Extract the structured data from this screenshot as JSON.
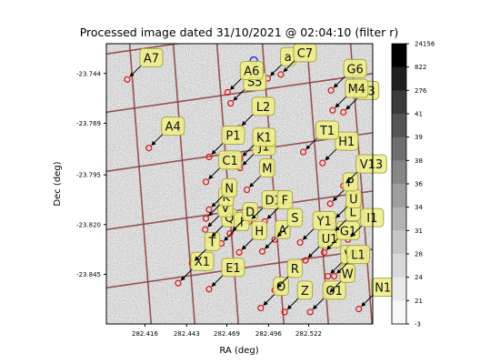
{
  "chart_data": {
    "type": "scatter",
    "title": "Processed image dated 31/10/2021 @ 02:04:10 (filter r)",
    "xlabel": "RA (deg)",
    "ylabel": "Dec (deg)",
    "x_ticks": [
      "282.416",
      "282.443",
      "282.469",
      "282.496",
      "282.522"
    ],
    "y_ticks": [
      "-23.744",
      "-23.769",
      "-23.795",
      "-23.820",
      "-23.845"
    ],
    "colorbar_ticks": [
      "24156",
      "822",
      "276",
      "41",
      "39",
      "38",
      "36",
      "34",
      "31",
      "28",
      "24",
      "21",
      "-3"
    ],
    "colormap": [
      "#000000",
      "#1f1f1f",
      "#3a3a3a",
      "#555555",
      "#6e6e6e",
      "#878787",
      "#9e9e9e",
      "#b3b3b3",
      "#c7c7c7",
      "#d9d9d9",
      "#e9e9e9",
      "#f7f7f7"
    ],
    "target_marker": {
      "ra": 282.4865,
      "dec": -23.7375,
      "color": "#1f1fdd"
    },
    "stars": [
      {
        "label": "O",
        "ra": 282.491,
        "dec": -23.862
      },
      {
        "label": "Z",
        "ra": 282.5065,
        "dec": -23.864
      },
      {
        "label": "O1",
        "ra": 282.523,
        "dec": -23.864
      },
      {
        "label": "N1",
        "ra": 282.5545,
        "dec": -23.8625
      },
      {
        "label": "W",
        "ra": 282.534,
        "dec": -23.8555
      },
      {
        "label": "E1",
        "ra": 282.4575,
        "dec": -23.8525
      },
      {
        "label": "X1",
        "ra": 282.4375,
        "dec": -23.8495
      },
      {
        "label": "R",
        "ra": 282.5,
        "dec": -23.853
      },
      {
        "label": "V1",
        "ra": 282.5345,
        "dec": -23.846
      },
      {
        "label": "L1",
        "ra": 282.5385,
        "dec": -23.846
      },
      {
        "label": "T",
        "ra": 282.4465,
        "dec": -23.8395
      },
      {
        "label": "H",
        "ra": 282.477,
        "dec": -23.834
      },
      {
        "label": "A",
        "ra": 282.492,
        "dec": -23.8335
      },
      {
        "label": "U1",
        "ra": 282.52,
        "dec": -23.838
      },
      {
        "label": "G1",
        "ra": 282.532,
        "dec": -23.834
      },
      {
        "label": "Y1",
        "ra": 282.5165,
        "dec": -23.829
      },
      {
        "label": "S",
        "ra": 282.5,
        "dec": -23.8275
      },
      {
        "label": "I1",
        "ra": 282.5475,
        "dec": -23.8275
      },
      {
        "label": "Q",
        "ra": 282.4575,
        "dec": -23.8275
      },
      {
        "label": "I",
        "ra": 282.4655,
        "dec": -23.8295
      },
      {
        "label": "D",
        "ra": 282.471,
        "dec": -23.8245
      },
      {
        "label": "V",
        "ra": 282.455,
        "dec": -23.8225
      },
      {
        "label": "L",
        "ra": 282.5375,
        "dec": -23.8245
      },
      {
        "label": "U",
        "ra": 282.538,
        "dec": -23.818
      },
      {
        "label": "D1",
        "ra": 282.4835,
        "dec": -23.8185
      },
      {
        "label": "F",
        "ra": 282.4935,
        "dec": -23.8185
      },
      {
        "label": "K",
        "ra": 282.4555,
        "dec": -23.817
      },
      {
        "label": "N",
        "ra": 282.4575,
        "dec": -23.8125
      },
      {
        "label": "P",
        "ra": 282.536,
        "dec": -23.8095
      },
      {
        "label": "M",
        "ra": 282.482,
        "dec": -23.8025
      },
      {
        "label": "V13",
        "ra": 282.5445,
        "dec": -23.8005
      },
      {
        "label": "C1",
        "ra": 282.4555,
        "dec": -23.7985
      },
      {
        "label": "J1",
        "ra": 282.4775,
        "dec": -23.7915
      },
      {
        "label": "H1",
        "ra": 282.531,
        "dec": -23.789
      },
      {
        "label": "P1",
        "ra": 282.4575,
        "dec": -23.786
      },
      {
        "label": "K1",
        "ra": 282.4775,
        "dec": -23.787
      },
      {
        "label": "A4",
        "ra": 282.4185,
        "dec": -23.7815
      },
      {
        "label": "T1",
        "ra": 282.5185,
        "dec": -23.7835
      },
      {
        "label": "L2",
        "ra": 282.477,
        "dec": -23.7715
      },
      {
        "label": "X3",
        "ra": 282.5445,
        "dec": -23.7635
      },
      {
        "label": "M4",
        "ra": 282.5375,
        "dec": -23.7625
      },
      {
        "label": "S5",
        "ra": 282.4715,
        "dec": -23.759
      },
      {
        "label": "A6",
        "ra": 282.4695,
        "dec": -23.7535
      },
      {
        "label": "G6",
        "ra": 282.5365,
        "dec": -23.7525
      },
      {
        "label": "A7",
        "ra": 282.4045,
        "dec": -23.747
      },
      {
        "label": "a",
        "ra": 282.4955,
        "dec": -23.7465
      },
      {
        "label": "C7",
        "ra": 282.504,
        "dec": -23.7445
      }
    ]
  }
}
